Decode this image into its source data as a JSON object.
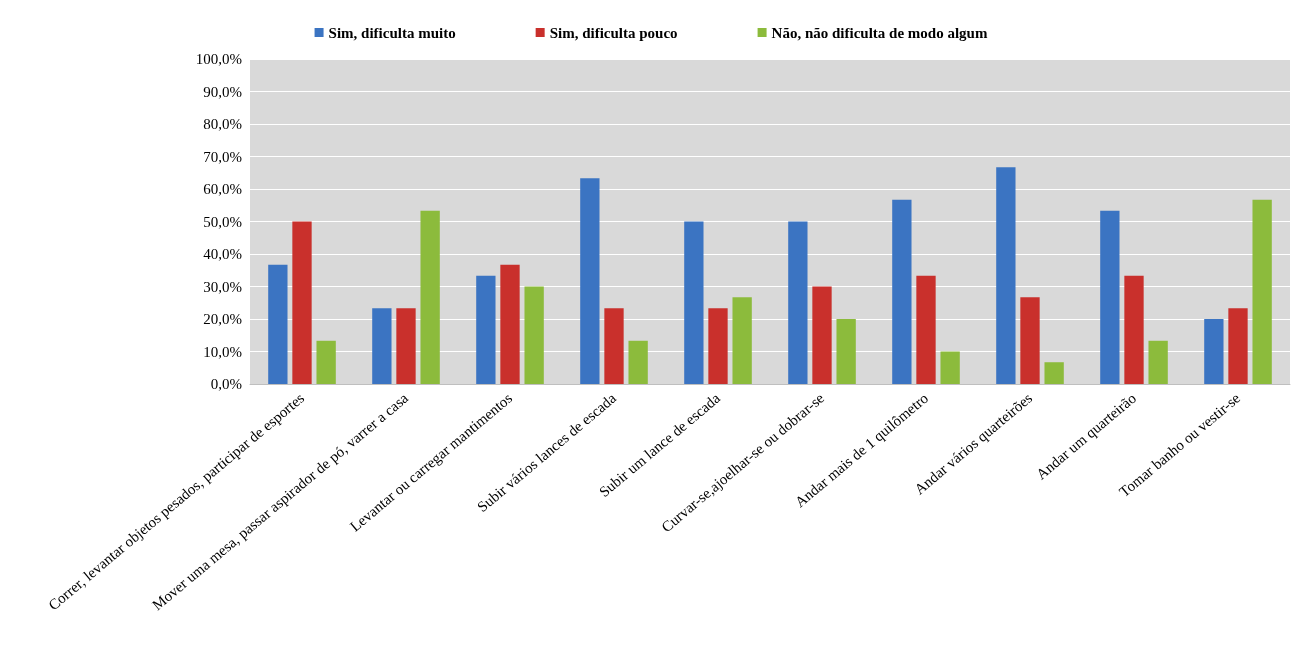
{
  "chart_data": {
    "type": "bar",
    "categories": [
      "Correr, levantar objetos pesados, participar de esportes",
      "Mover uma mesa, passar aspirador de pó, varrer a casa",
      "Levantar ou carregar mantimentos",
      "Subir vários lances de escada",
      "Subir um lance de escada",
      "Curvar-se,ajoelhar-se ou dobrar-se",
      "Andar mais de 1 quilômetro",
      "Andar vários quarteirões",
      "Andar um quarteirão",
      "Tomar banho ou vestir-se"
    ],
    "series": [
      {
        "name": "Sim, dificulta muito",
        "color": "#3b74c2",
        "values": [
          36.7,
          23.3,
          33.3,
          63.3,
          50,
          50,
          56.7,
          66.7,
          53.3,
          20
        ]
      },
      {
        "name": "Sim, dificulta pouco",
        "color": "#c9302c",
        "values": [
          50,
          23.3,
          36.7,
          23.3,
          23.3,
          30,
          33.3,
          26.7,
          33.3,
          23.3
        ]
      },
      {
        "name": "Não, não dificulta de modo algum",
        "color": "#8cbb3c",
        "values": [
          13.3,
          53.3,
          30,
          13.3,
          26.7,
          20,
          10,
          6.7,
          13.3,
          56.7
        ]
      }
    ],
    "ylim": [
      0,
      100
    ],
    "yticks": [
      {
        "value": 0,
        "label": "0,0%"
      },
      {
        "value": 10,
        "label": "10,0%"
      },
      {
        "value": 20,
        "label": "20,0%"
      },
      {
        "value": 30,
        "label": "30,0%"
      },
      {
        "value": 40,
        "label": "40,0%"
      },
      {
        "value": 50,
        "label": "50,0%"
      },
      {
        "value": 60,
        "label": "60,0%"
      },
      {
        "value": 70,
        "label": "70,0%"
      },
      {
        "value": 80,
        "label": "80,0%"
      },
      {
        "value": 90,
        "label": "90,0%"
      },
      {
        "value": 100,
        "label": "100,0%"
      }
    ],
    "grid": "y",
    "legend": "top"
  }
}
